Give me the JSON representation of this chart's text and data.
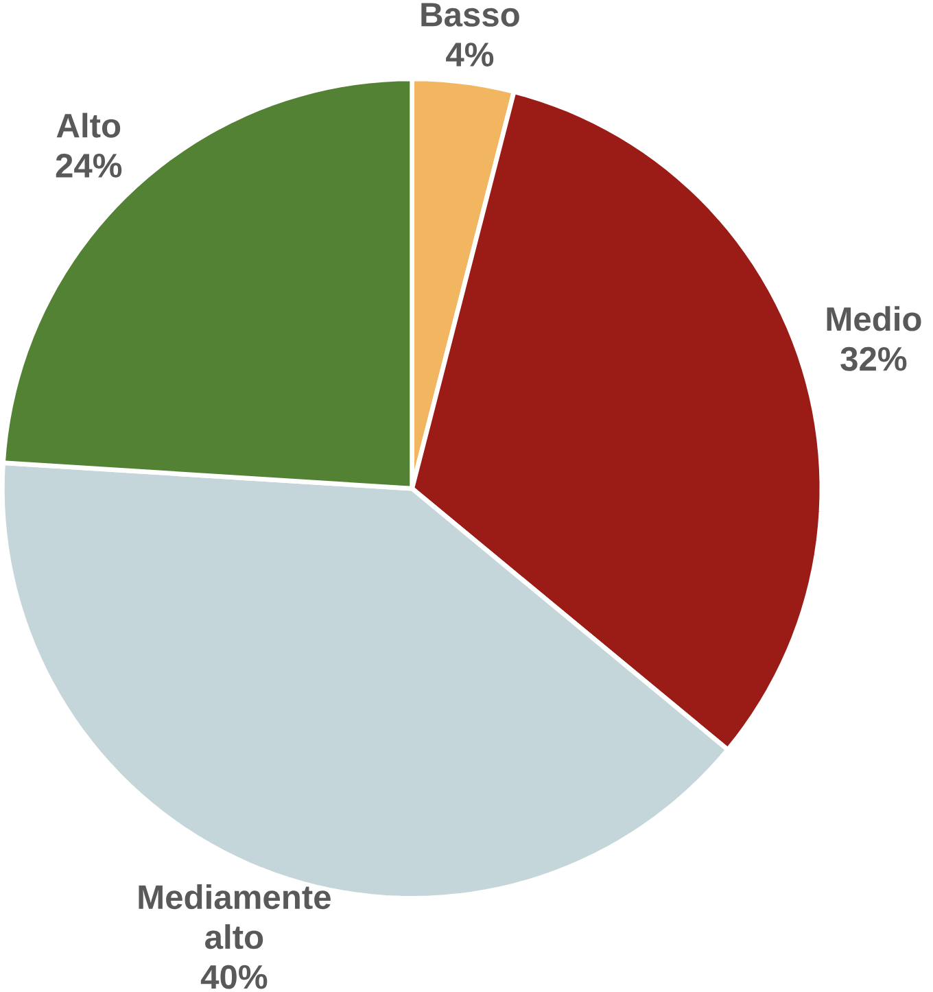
{
  "chart_data": {
    "type": "pie",
    "categories": [
      "Basso",
      "Medio",
      "Mediamente alto",
      "Alto"
    ],
    "values": [
      4,
      32,
      40,
      24
    ],
    "colors": [
      "#f2b661",
      "#9b1b17",
      "#c4d6da",
      "#548235"
    ],
    "value_labels": [
      "4%",
      "32%",
      "40%",
      "24%"
    ]
  }
}
